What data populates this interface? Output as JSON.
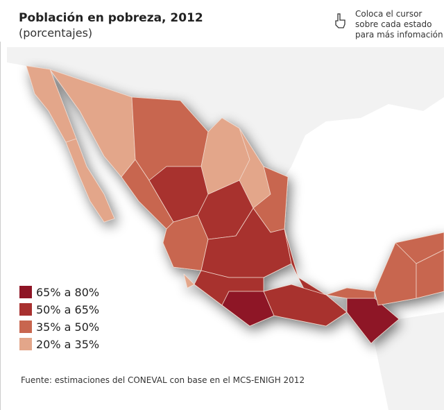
{
  "title": "Población en pobreza, 2012",
  "subtitle": "(porcentajes)",
  "hint": [
    "Coloca el cursor",
    "sobre cada estado",
    "para más infomación"
  ],
  "legend": [
    {
      "label": "65% a 80%",
      "color": "#8e1525"
    },
    {
      "label": "50% a 65%",
      "color": "#a8302f"
    },
    {
      "label": "35% a 50%",
      "color": "#c8664f"
    },
    {
      "label": "20% a 35%",
      "color": "#e3a68a"
    }
  ],
  "source": "Fuente: estimaciones del CONEVAL con base en el MCS-ENIGH 2012"
}
